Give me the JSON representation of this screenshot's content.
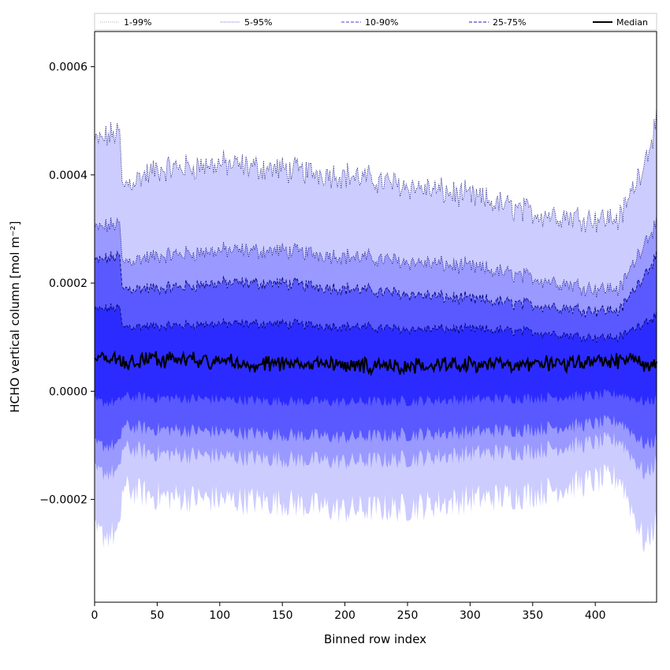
{
  "chart_data": {
    "type": "area",
    "xlabel": "Binned row index",
    "ylabel": "HCHO vertical column [mol m⁻²]",
    "xlim": [
      0,
      449
    ],
    "ylim": [
      -0.00039,
      0.000665
    ],
    "xticks": [
      0,
      50,
      100,
      150,
      200,
      250,
      300,
      350,
      400
    ],
    "yticks": [
      -0.0002,
      0.0,
      0.0002,
      0.0004,
      0.0006
    ],
    "ytick_labels": [
      "−0.0002",
      "0.0000",
      "0.0002",
      "0.0004",
      "0.0006"
    ],
    "grid": false,
    "legend_position": "top (horizontal strip)",
    "x_anchor_points": [
      0,
      20,
      22,
      50,
      100,
      150,
      200,
      250,
      300,
      350,
      400,
      420,
      440,
      449
    ],
    "bands": [
      {
        "name": "1-99%",
        "color": "#ccccff",
        "line_color": "#aaaaaa",
        "line_style": "dotted",
        "upper": [
          0.00046,
          0.00048,
          0.00038,
          0.00041,
          0.00042,
          0.00041,
          0.0004,
          0.00038,
          0.00036,
          0.00033,
          0.00032,
          0.00032,
          0.00043,
          0.0005
        ],
        "lower": [
          -0.000265,
          -0.000265,
          -0.00018,
          -0.000195,
          -0.0002,
          -0.000205,
          -0.00022,
          -0.000215,
          -0.0002,
          -0.00019,
          -0.000165,
          -0.00016,
          -0.000285,
          -0.00024
        ]
      },
      {
        "name": "5-95%",
        "color": "#9999ff",
        "line_color": "#5555cc",
        "line_style": "dotted",
        "upper": [
          0.0003,
          0.00031,
          0.00024,
          0.00025,
          0.00026,
          0.00026,
          0.00025,
          0.00024,
          0.00023,
          0.00021,
          0.00019,
          0.00019,
          0.00028,
          0.00031
        ],
        "lower": [
          -0.00015,
          -0.00015,
          -0.000105,
          -0.000115,
          -0.00012,
          -0.000125,
          -0.00013,
          -0.000125,
          -0.000115,
          -0.00011,
          -9.5e-05,
          -9e-05,
          -0.000155,
          -0.00013
        ]
      },
      {
        "name": "10-90%",
        "color": "#5959ff",
        "line_color": "#4444dd",
        "line_style": "dashed",
        "upper": [
          0.00024,
          0.00025,
          0.00019,
          0.00019,
          0.0002,
          0.0002,
          0.00019,
          0.00018,
          0.00017,
          0.00016,
          0.00015,
          0.00015,
          0.00022,
          0.00025
        ],
        "lower": [
          -0.0001,
          -0.0001,
          -6.5e-05,
          -7e-05,
          -7.5e-05,
          -8e-05,
          -8.5e-05,
          -8e-05,
          -7.5e-05,
          -7e-05,
          -6e-05,
          -5.5e-05,
          -0.0001,
          -9e-05
        ]
      },
      {
        "name": "25-75%",
        "color": "#2b2bff",
        "line_color": "#2222bb",
        "line_style": "dashed",
        "upper": [
          0.00015,
          0.000155,
          0.00012,
          0.00012,
          0.000125,
          0.000125,
          0.00012,
          0.000115,
          0.000115,
          0.00011,
          0.0001,
          0.0001,
          0.00013,
          0.00014
        ],
        "lower": [
          -2e-05,
          -2e-05,
          -1e-05,
          -1.2e-05,
          -1.5e-05,
          -1.8e-05,
          -2e-05,
          -1.8e-05,
          -1.5e-05,
          -1.2e-05,
          -8e-06,
          -5e-06,
          -2e-05,
          -1.5e-05
        ]
      }
    ],
    "median": {
      "name": "Median",
      "color": "#000000",
      "values": [
        6e-05,
        6e-05,
        5.5e-05,
        6e-05,
        5.5e-05,
        5e-05,
        5e-05,
        4.5e-05,
        5e-05,
        5e-05,
        5.5e-05,
        5.5e-05,
        5e-05,
        6e-05
      ]
    }
  }
}
